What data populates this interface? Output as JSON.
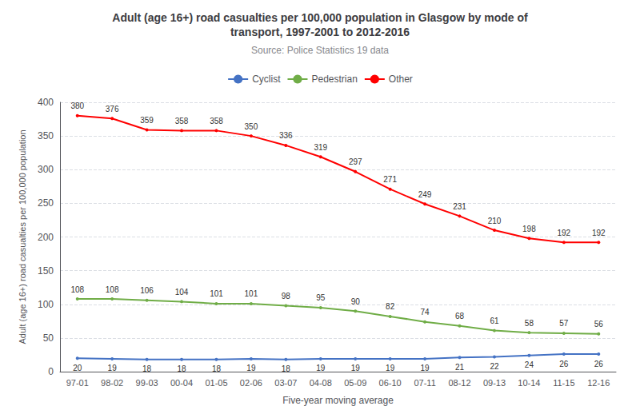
{
  "chart_data": {
    "type": "line",
    "title": "Adult (age 16+) road casualties per 100,000 population in Glasgow by mode of\ntransport, 1997-2001 to 2012-2016",
    "subtitle": "Source: Police Statistics 19 data",
    "xlabel": "Five-year moving average",
    "ylabel": "Adult (age 16+) road casualties per 100,000 population",
    "categories": [
      "97-01",
      "98-02",
      "99-03",
      "00-04",
      "01-05",
      "02-06",
      "03-07",
      "04-08",
      "05-09",
      "06-10",
      "07-11",
      "08-12",
      "09-13",
      "10-14",
      "11-15",
      "12-16"
    ],
    "series": [
      {
        "name": "Cyclist",
        "color": "#4472C4",
        "values": [
          20,
          19,
          18,
          18,
          18,
          19,
          18,
          19,
          19,
          19,
          19,
          21,
          22,
          24,
          26,
          26
        ]
      },
      {
        "name": "Pedestrian",
        "color": "#70AD47",
        "values": [
          108,
          108,
          106,
          104,
          101,
          101,
          98,
          95,
          90,
          82,
          74,
          68,
          61,
          58,
          57,
          56
        ]
      },
      {
        "name": "Other",
        "color": "#FF0000",
        "values": [
          380,
          376,
          359,
          358,
          358,
          350,
          336,
          319,
          297,
          271,
          249,
          231,
          210,
          198,
          192,
          192
        ]
      }
    ],
    "ylim": [
      0,
      400
    ],
    "yticks": [
      0,
      50,
      100,
      150,
      200,
      250,
      300,
      350,
      400
    ],
    "grid": true,
    "legend": "top",
    "data_labels": true
  }
}
